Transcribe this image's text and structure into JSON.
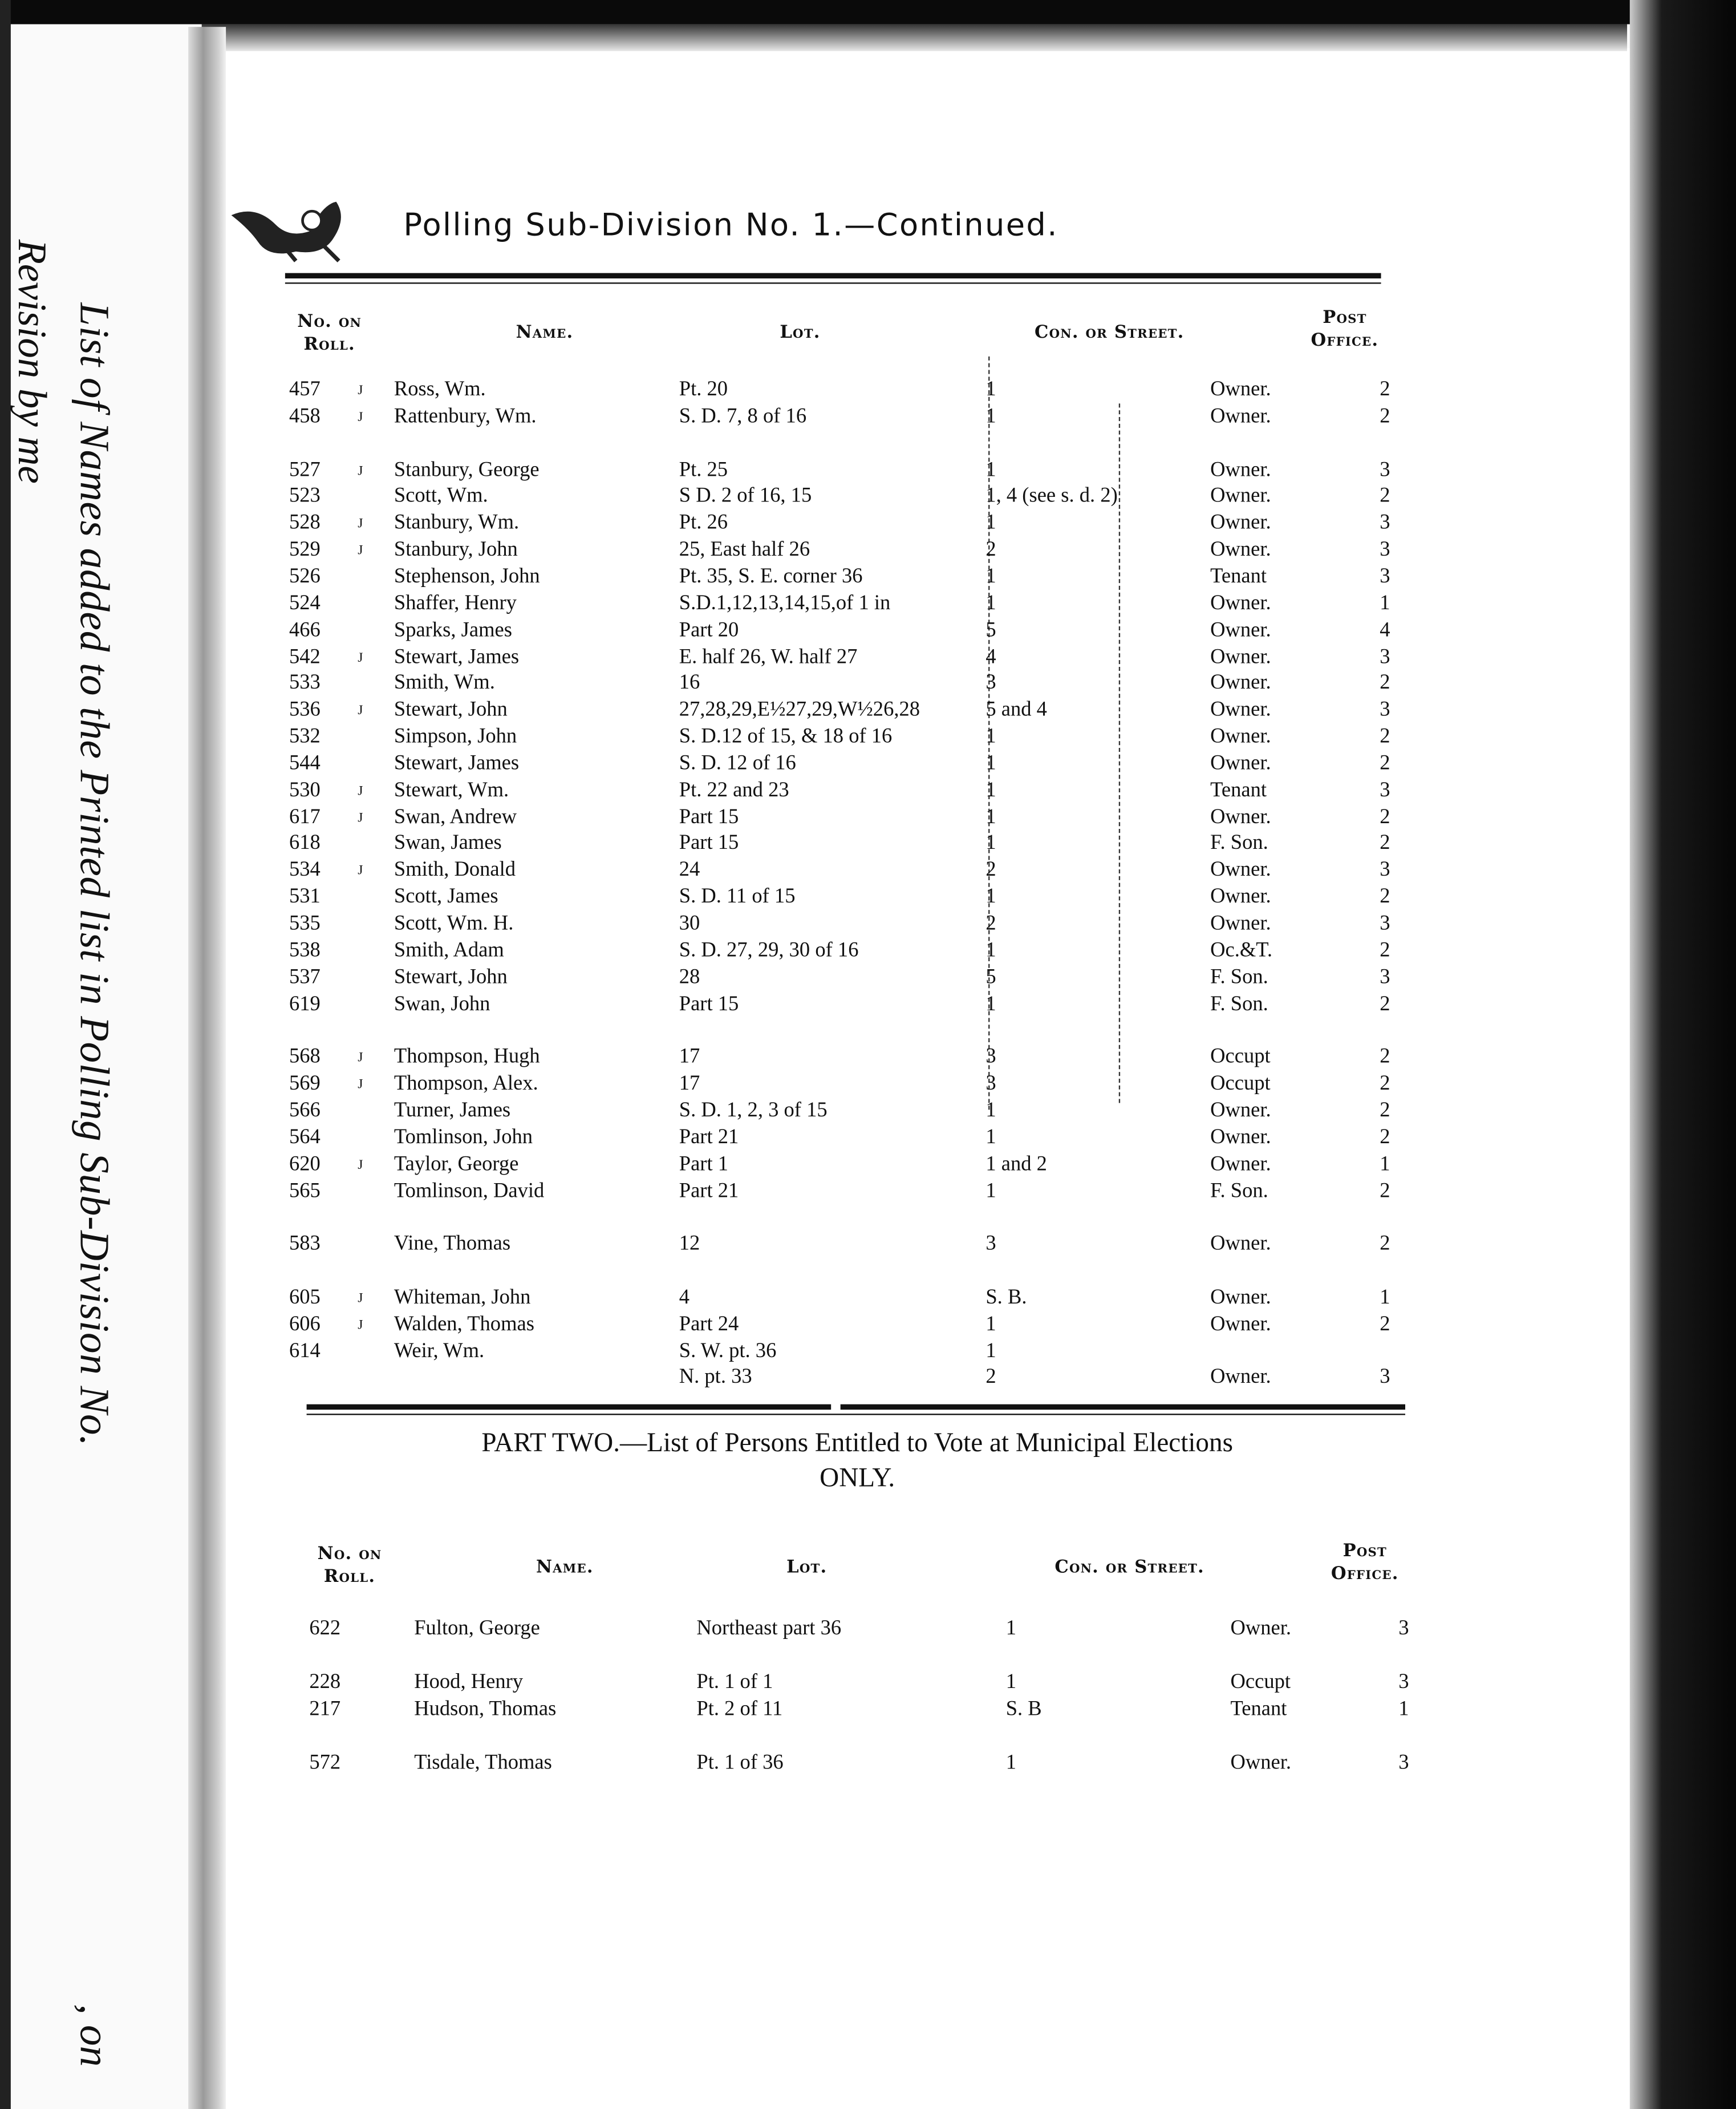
{
  "side_text": {
    "title": "List of Names added to the Printed list in Polling Sub-Division No.",
    "suffix": ", on",
    "subtitle": "Revision by me"
  },
  "header": {
    "title": "Polling Sub-Division No. 1.—Continued.",
    "ornament_icon": "decorative-ornament"
  },
  "columns": {
    "no_on_roll": [
      "No. on",
      "Roll."
    ],
    "name": "Name.",
    "lot": "Lot.",
    "con_or_street": "Con. or Street.",
    "post_office": [
      "Post",
      "Office."
    ]
  },
  "part_one": {
    "groups": [
      [
        {
          "no": "457",
          "j": "J",
          "name": "Ross, Wm.",
          "lot": "Pt. 20",
          "con": "1",
          "status": "Owner.",
          "po": "2"
        },
        {
          "no": "458",
          "j": "J",
          "name": "Rattenbury, Wm.",
          "lot": "S. D. 7, 8 of 16",
          "con": "1",
          "status": "Owner.",
          "po": "2"
        }
      ],
      [
        {
          "no": "527",
          "j": "J",
          "name": "Stanbury, George",
          "lot": "Pt. 25",
          "con": "1",
          "status": "Owner.",
          "po": "3"
        },
        {
          "no": "523",
          "j": "",
          "name": "Scott, Wm.",
          "lot": "S D. 2 of 16, 15",
          "con": "1, 4 (see s. d. 2)",
          "status": "Owner.",
          "po": "2"
        },
        {
          "no": "528",
          "j": "J",
          "name": "Stanbury, Wm.",
          "lot": "Pt. 26",
          "con": "1",
          "status": "Owner.",
          "po": "3"
        },
        {
          "no": "529",
          "j": "J",
          "name": "Stanbury, John",
          "lot": "25, East half 26",
          "con": "2",
          "status": "Owner.",
          "po": "3"
        },
        {
          "no": "526",
          "j": "",
          "name": "Stephenson, John",
          "lot": "Pt. 35, S. E. corner 36",
          "con": "1",
          "status": "Tenant",
          "po": "3"
        },
        {
          "no": "524",
          "j": "",
          "name": "Shaffer, Henry",
          "lot": "S.D.1,12,13,14,15,of 1 in",
          "con": "1",
          "status": "Owner.",
          "po": "1"
        },
        {
          "no": "466",
          "j": "",
          "name": "Sparks, James",
          "lot": "Part 20",
          "con": "5",
          "status": "Owner.",
          "po": "4"
        },
        {
          "no": "542",
          "j": "J",
          "name": "Stewart, James",
          "lot": "E. half 26, W. half 27",
          "con": "4",
          "status": "Owner.",
          "po": "3"
        },
        {
          "no": "533",
          "j": "",
          "name": "Smith, Wm.",
          "lot": "16",
          "con": "3",
          "status": "Owner.",
          "po": "2"
        },
        {
          "no": "536",
          "j": "J",
          "name": "Stewart, John",
          "lot": "27,28,29,E½27,29,W½26,28",
          "con": "5 and 4",
          "status": "Owner.",
          "po": "3"
        },
        {
          "no": "532",
          "j": "",
          "name": "Simpson, John",
          "lot": "S. D.12 of 15, & 18 of 16",
          "con": "1",
          "status": "Owner.",
          "po": "2"
        },
        {
          "no": "544",
          "j": "",
          "name": "Stewart, James",
          "lot": "S. D. 12 of 16",
          "con": "1",
          "status": "Owner.",
          "po": "2"
        },
        {
          "no": "530",
          "j": "J",
          "name": "Stewart, Wm.",
          "lot": "Pt. 22 and 23",
          "con": "1",
          "status": "Tenant",
          "po": "3"
        },
        {
          "no": "617",
          "j": "J",
          "name": "Swan, Andrew",
          "lot": "Part 15",
          "con": "1",
          "status": "Owner.",
          "po": "2"
        },
        {
          "no": "618",
          "j": "",
          "name": "Swan, James",
          "lot": "Part 15",
          "con": "1",
          "status": "F. Son.",
          "po": "2"
        },
        {
          "no": "534",
          "j": "J",
          "name": "Smith, Donald",
          "lot": "24",
          "con": "2",
          "status": "Owner.",
          "po": "3"
        },
        {
          "no": "531",
          "j": "",
          "name": "Scott, James",
          "lot": "S. D. 11 of 15",
          "con": "1",
          "status": "Owner.",
          "po": "2"
        },
        {
          "no": "535",
          "j": "",
          "name": "Scott, Wm. H.",
          "lot": "30",
          "con": "2",
          "status": "Owner.",
          "po": "3"
        },
        {
          "no": "538",
          "j": "",
          "name": "Smith, Adam",
          "lot": "S. D. 27, 29, 30 of 16",
          "con": "1",
          "status": "Oc.&T.",
          "po": "2"
        },
        {
          "no": "537",
          "j": "",
          "name": "Stewart, John",
          "lot": "28",
          "con": "5",
          "status": "F. Son.",
          "po": "3"
        },
        {
          "no": "619",
          "j": "",
          "name": "Swan, John",
          "lot": "Part 15",
          "con": "1",
          "status": "F. Son.",
          "po": "2"
        }
      ],
      [
        {
          "no": "568",
          "j": "J",
          "name": "Thompson, Hugh",
          "lot": "17",
          "con": "3",
          "status": "Occupt",
          "po": "2"
        },
        {
          "no": "569",
          "j": "J",
          "name": "Thompson, Alex.",
          "lot": "17",
          "con": "3",
          "status": "Occupt",
          "po": "2"
        },
        {
          "no": "566",
          "j": "",
          "name": "Turner, James",
          "lot": "S. D. 1, 2, 3 of 15",
          "con": "1",
          "status": "Owner.",
          "po": "2"
        },
        {
          "no": "564",
          "j": "",
          "name": "Tomlinson, John",
          "lot": "Part 21",
          "con": "1",
          "status": "Owner.",
          "po": "2"
        },
        {
          "no": "620",
          "j": "J",
          "name": "Taylor, George",
          "lot": "Part 1",
          "con": "1 and 2",
          "status": "Owner.",
          "po": "1"
        },
        {
          "no": "565",
          "j": "",
          "name": "Tomlinson, David",
          "lot": "Part 21",
          "con": "1",
          "status": "F. Son.",
          "po": "2"
        }
      ],
      [
        {
          "no": "583",
          "j": "",
          "name": "Vine, Thomas",
          "lot": "12",
          "con": "3",
          "status": "Owner.",
          "po": "2"
        }
      ],
      [
        {
          "no": "605",
          "j": "J",
          "name": "Whiteman, John",
          "lot": "4",
          "con": "S. B.",
          "status": "Owner.",
          "po": "1"
        },
        {
          "no": "606",
          "j": "J",
          "name": "Walden, Thomas",
          "lot": "Part 24",
          "con": "1",
          "status": "Owner.",
          "po": "2"
        },
        {
          "no": "614",
          "j": "",
          "name": "Weir, Wm.",
          "lot": "S. W. pt. 36",
          "con": "1",
          "status": "",
          "po": ""
        },
        {
          "no": "",
          "j": "",
          "name": "",
          "lot": "N. pt. 33",
          "con": "2",
          "status": "Owner.",
          "po": "3"
        }
      ]
    ]
  },
  "part_two": {
    "heading": "PART TWO.—List of Persons Entitled to Vote at Municipal Elections",
    "heading_line2": "ONLY.",
    "groups": [
      [
        {
          "no": "622",
          "j": "",
          "name": "Fulton, George",
          "lot": "Northeast part 36",
          "con": "1",
          "status": "Owner.",
          "po": "3"
        }
      ],
      [
        {
          "no": "228",
          "j": "",
          "name": "Hood, Henry",
          "lot": "Pt. 1 of 1",
          "con": "1",
          "status": "Occupt",
          "po": "3"
        },
        {
          "no": "217",
          "j": "",
          "name": "Hudson, Thomas",
          "lot": "Pt. 2 of 11",
          "con": "S. B",
          "status": "Tenant",
          "po": "1"
        }
      ],
      [
        {
          "no": "572",
          "j": "",
          "name": "Tisdale, Thomas",
          "lot": "Pt. 1 of 36",
          "con": "1",
          "status": "Owner.",
          "po": "3"
        }
      ]
    ]
  }
}
